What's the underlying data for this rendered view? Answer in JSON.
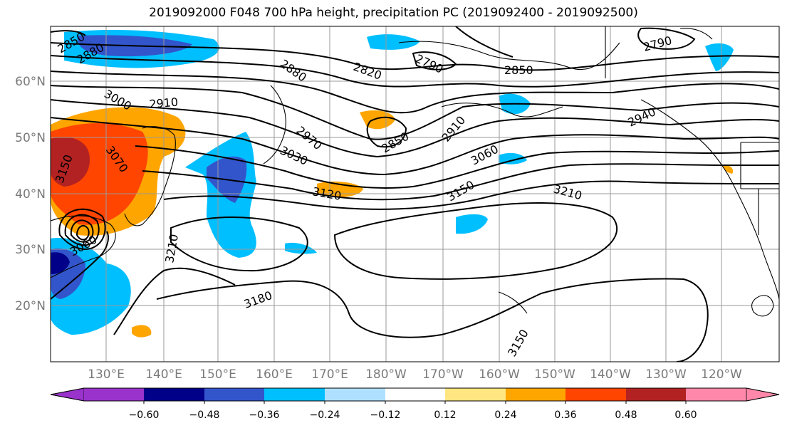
{
  "title": "2019092000 F048 700 hPa height, precipitation PC (2019092400 - 2019092500)",
  "lat_labels": [
    "60°N",
    "50°N",
    "40°N",
    "30°N",
    "20°N"
  ],
  "lon_labels": [
    "130°E",
    "140°E",
    "150°E",
    "160°E",
    "170°E",
    "180°W",
    "170°W",
    "160°W",
    "150°W",
    "140°W",
    "130°W",
    "120°W"
  ],
  "colorbar": {
    "tick_labels": [
      "−0.60",
      "−0.48",
      "−0.36",
      "−0.24",
      "−0.12",
      "0.12",
      "0.24",
      "0.36",
      "0.48",
      "0.60"
    ],
    "colors": [
      "#9933cc",
      "#000088",
      "#3355cc",
      "#00bfff",
      "#b0e0ff",
      "#ffffff",
      "#ffe680",
      "#ffa500",
      "#ff4500",
      "#b22222",
      "#ff88aa"
    ]
  },
  "contour_labels": [
    "2850",
    "2880",
    "3000",
    "2910",
    "2880",
    "2820",
    "2790",
    "2850",
    "2790",
    "2940",
    "2970",
    "3030",
    "2850",
    "2910",
    "3060",
    "3070",
    "3150",
    "3120",
    "3150",
    "3210",
    "3210",
    "3060",
    "3180",
    "3150"
  ]
}
